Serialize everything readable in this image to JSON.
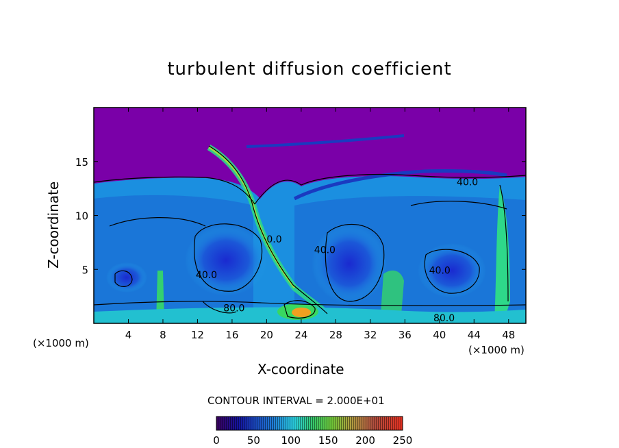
{
  "chart_data": {
    "type": "heatmap",
    "title": "turbulent diffusion coefficient",
    "xlabel": "X-coordinate",
    "ylabel": "Z-coordinate",
    "x_unit_label": "(×1000 m)",
    "x_ticks": [
      4,
      8,
      12,
      16,
      20,
      24,
      28,
      32,
      36,
      40,
      44,
      48
    ],
    "y_ticks": [
      5,
      10,
      15
    ],
    "xlim": [
      0,
      50
    ],
    "ylim": [
      0,
      20
    ],
    "contour_interval_text": "CONTOUR INTERVAL = 2.000E+01",
    "contour_labels": [
      {
        "text": "40.0",
        "x": 11.8,
        "z": 4.2
      },
      {
        "text": "80.0",
        "x": 15.0,
        "z": 1.1
      },
      {
        "text": "40.0",
        "x": 25.5,
        "z": 6.5
      },
      {
        "text": "80.0",
        "x": 39.3,
        "z": 0.2
      },
      {
        "text": "40.0",
        "x": 38.8,
        "z": 4.6
      },
      {
        "text": "40.0",
        "x": 42.0,
        "z": 12.8
      },
      {
        "text": "0.0",
        "x": 20.0,
        "z": 7.5
      }
    ],
    "colorbar": {
      "ticks": [
        0,
        50,
        100,
        150,
        200,
        250
      ],
      "range": [
        0,
        250
      ]
    },
    "colors": {
      "background": "#7a00a8",
      "low": "#1a1aa8",
      "mid": "#0fa6e8",
      "high": "#3ce05a",
      "peak": "#ff7a10"
    }
  }
}
